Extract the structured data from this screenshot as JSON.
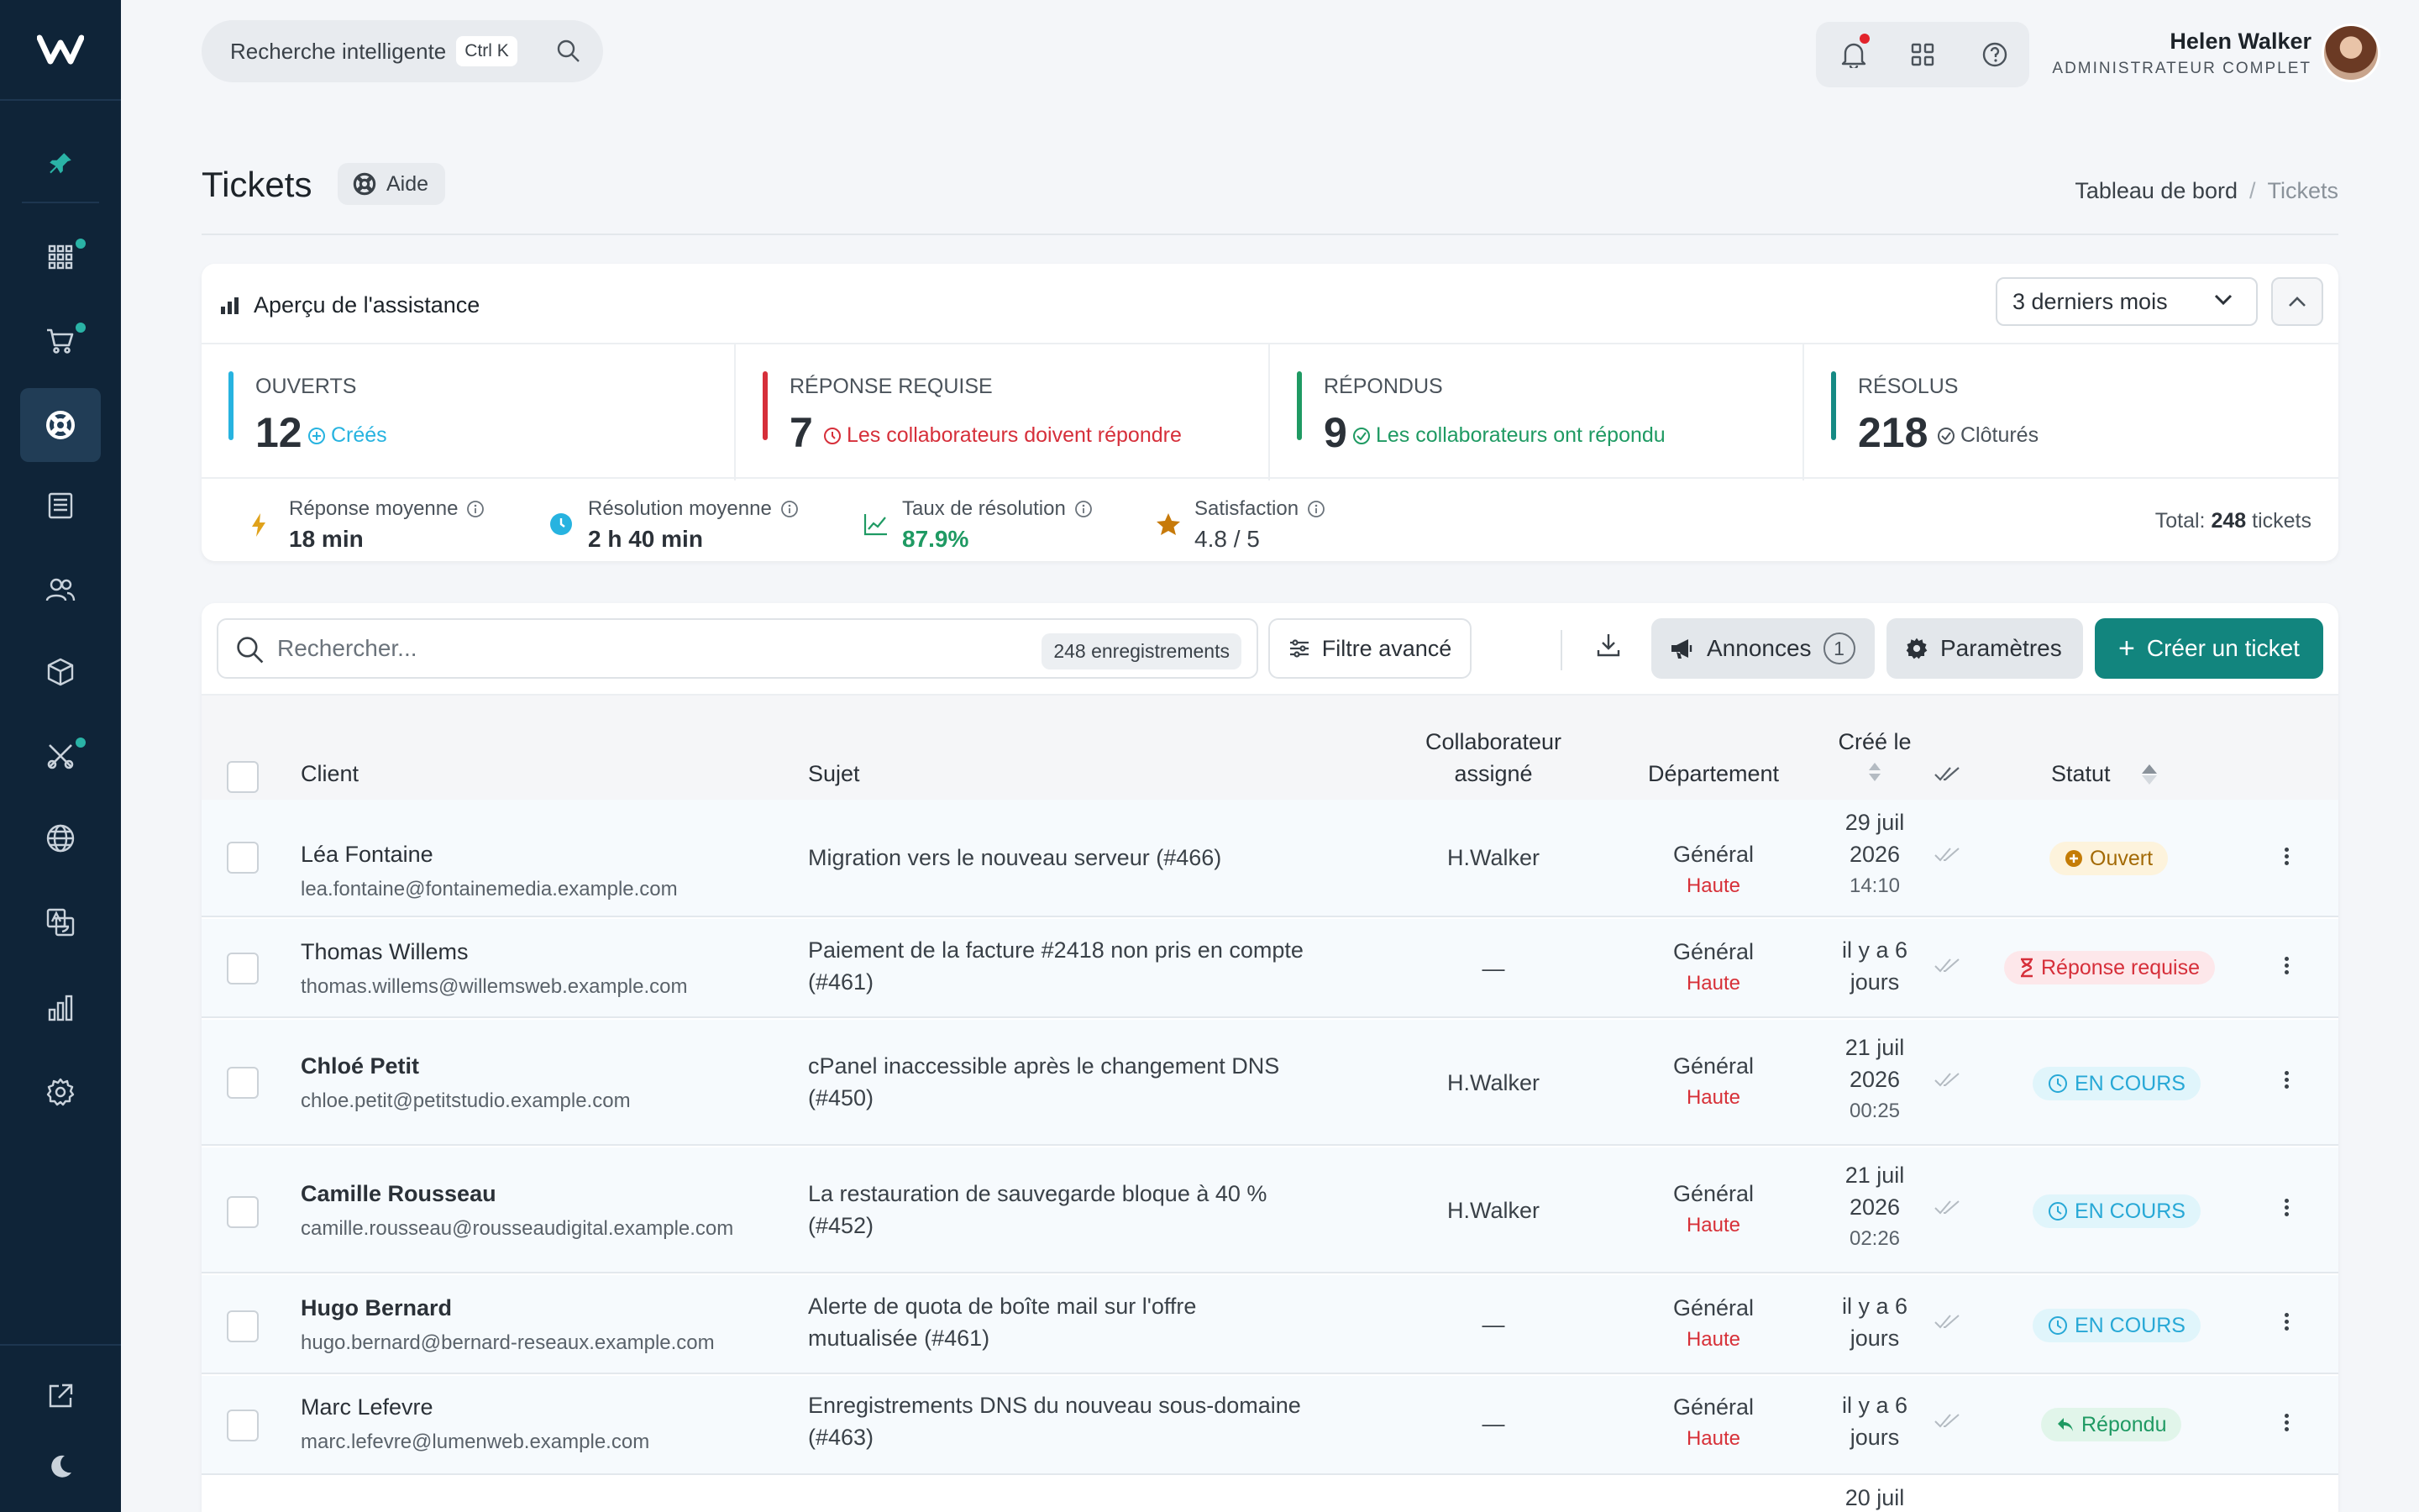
{
  "app": {
    "logo_text": "W"
  },
  "topbar": {
    "search_label": "Recherche intelligente",
    "search_shortcut": "Ctrl K",
    "user_name": "Helen Walker",
    "user_role": "ADMINISTRATEUR COMPLET"
  },
  "page": {
    "title": "Tickets",
    "help_label": "Aide",
    "breadcrumb": {
      "home": "Tableau de bord",
      "sep": "/",
      "current": "Tickets"
    }
  },
  "overview": {
    "title": "Aperçu de l'assistance",
    "period": "3 derniers mois",
    "stats": [
      {
        "label": "OUVERTS",
        "value": "12",
        "sub": "Créés",
        "color": "#27b3e0"
      },
      {
        "label": "RÉPONSE REQUISE",
        "value": "7",
        "sub": "Les collaborateurs doivent répondre",
        "color": "#d62f3a"
      },
      {
        "label": "RÉPONDUS",
        "value": "9",
        "sub": "Les collaborateurs ont répondu",
        "color": "#1f9a63"
      },
      {
        "label": "RÉSOLUS",
        "value": "218",
        "sub": "Clôturés",
        "color": "#158a84"
      }
    ],
    "kpis": [
      {
        "label": "Réponse moyenne",
        "value": "18 min"
      },
      {
        "label": "Résolution moyenne",
        "value": "2 h 40 min"
      },
      {
        "label": "Taux de résolution",
        "value": "87.9%"
      },
      {
        "label": "Satisfaction",
        "value": "4.8 / 5"
      }
    ],
    "total_prefix": "Total:",
    "total_value": "248",
    "total_suffix": "tickets"
  },
  "toolbar": {
    "search_placeholder": "Rechercher...",
    "records": "248 enregistrements",
    "filter_label": "Filtre avancé",
    "announcements_label": "Annonces",
    "announcements_count": "1",
    "settings_label": "Paramètres",
    "create_label": "Créer un ticket"
  },
  "table": {
    "headers": {
      "client": "Client",
      "subject": "Sujet",
      "assignee_1": "Collaborateur",
      "assignee_2": "assigné",
      "department": "Département",
      "created": "Créé le",
      "status": "Statut"
    },
    "rows": [
      {
        "name": "Léa Fontaine",
        "email": "lea.fontaine@fontainemedia.example.com",
        "subject_1": "Migration vers le nouveau serveur (#466)",
        "subject_2": "",
        "assignee": "H.Walker",
        "department": "Général",
        "priority": "Haute",
        "date_1": "29 juil",
        "date_2": "2026",
        "date_3": "14:10",
        "status": "Ouvert"
      },
      {
        "name": "Thomas Willems",
        "email": "thomas.willems@willemsweb.example.com",
        "subject_1": "Paiement de la facture #2418 non pris en compte",
        "subject_2": "(#461)",
        "assignee": "—",
        "department": "Général",
        "priority": "Haute",
        "date_1": "il y a 6",
        "date_2": "jours",
        "date_3": "",
        "status": "Réponse requise"
      },
      {
        "name": "Chloé Petit",
        "email": "chloe.petit@petitstudio.example.com",
        "subject_1": "cPanel inaccessible après le changement DNS",
        "subject_2": "(#450)",
        "assignee": "H.Walker",
        "department": "Général",
        "priority": "Haute",
        "date_1": "21 juil",
        "date_2": "2026",
        "date_3": "00:25",
        "status": "EN COURS"
      },
      {
        "name": "Camille Rousseau",
        "email": "camille.rousseau@rousseaudigital.example.com",
        "subject_1": "La restauration de sauvegarde bloque à 40 %",
        "subject_2": "(#452)",
        "assignee": "H.Walker",
        "department": "Général",
        "priority": "Haute",
        "date_1": "21 juil",
        "date_2": "2026",
        "date_3": "02:26",
        "status": "EN COURS"
      },
      {
        "name": "Hugo Bernard",
        "email": "hugo.bernard@bernard-reseaux.example.com",
        "subject_1": "Alerte de quota de boîte mail sur l'offre",
        "subject_2": "mutualisée (#461)",
        "assignee": "—",
        "department": "Général",
        "priority": "Haute",
        "date_1": "il y a 6",
        "date_2": "jours",
        "date_3": "",
        "status": "EN COURS"
      },
      {
        "name": "Marc Lefevre",
        "email": "marc.lefevre@lumenweb.example.com",
        "subject_1": "Enregistrements DNS du nouveau sous-domaine",
        "subject_2": "(#463)",
        "assignee": "—",
        "department": "Général",
        "priority": "Haute",
        "date_1": "il y a 6",
        "date_2": "jours",
        "date_3": "",
        "status": "Répondu"
      },
      {
        "date_1": "20 juil"
      }
    ]
  },
  "colors": {
    "sidebar": "#0f2438",
    "accent": "#12857e",
    "danger": "#d62f3a",
    "success": "#1f9a63",
    "info": "#27b3e0"
  }
}
